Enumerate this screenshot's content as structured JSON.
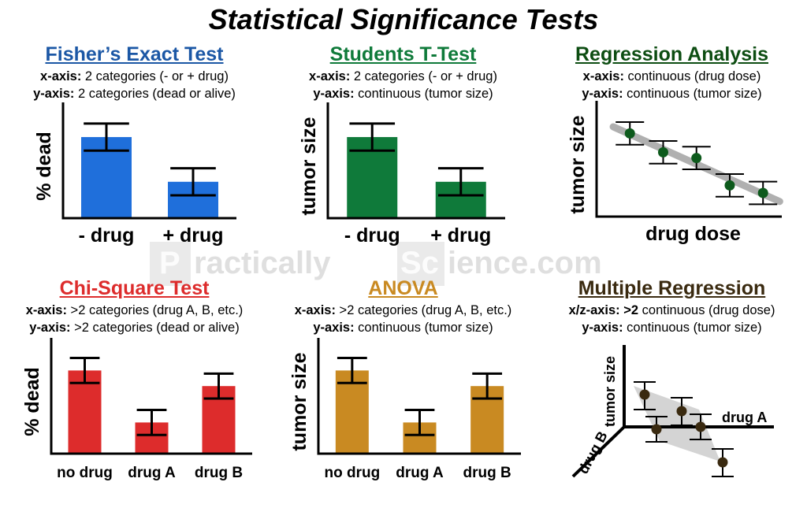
{
  "title": "Statistical Significance Tests",
  "watermark": {
    "text": "PracticallyScience.com",
    "parts": [
      "P",
      "ractically",
      "Sc",
      "ience.com"
    ]
  },
  "colors": {
    "blue": "#1f6fdb",
    "green": "#0f7a3a",
    "darkgreen": "#0d5a1c",
    "red": "#dd2c2c",
    "orange": "#c98a22",
    "dark": "#3a2a10",
    "fisher_title": "#1b57a5",
    "ttest_title": "#0f7a3a",
    "regression_title": "#0d4d12",
    "chi_title": "#dd2c2c",
    "anova_title": "#c98a22",
    "multireg_title": "#3a2a10"
  },
  "panels": {
    "fisher": {
      "title": "Fisher’s Exact Test",
      "x_label": "x-axis:",
      "x_desc": " 2 categories (- or + drug)",
      "y_label": "y-axis:",
      "y_desc": " 2 categories (dead or alive)",
      "chart_data": {
        "type": "bar",
        "categories": [
          "- drug",
          "+ drug"
        ],
        "values": [
          78,
          35
        ],
        "error": [
          13,
          13
        ],
        "ylabel": "% dead",
        "ylim": [
          0,
          100
        ],
        "grid": false
      }
    },
    "ttest": {
      "title": "Students T-Test",
      "x_label": "x-axis:",
      "x_desc": " 2 categories (- or + drug)",
      "y_label": "y-axis:",
      "y_desc": " continuous (tumor size)",
      "chart_data": {
        "type": "bar",
        "categories": [
          "- drug",
          "+ drug"
        ],
        "values": [
          78,
          35
        ],
        "error": [
          13,
          13
        ],
        "ylabel": "tumor size",
        "ylim": [
          0,
          100
        ],
        "grid": false
      }
    },
    "regression": {
      "title": "Regression Analysis",
      "x_label": "x-axis:",
      "x_desc": " continuous (drug dose)",
      "y_label": "y-axis:",
      "y_desc": " continuous (tumor size)",
      "chart_data": {
        "type": "scatter",
        "x": [
          1,
          2,
          3,
          4,
          5
        ],
        "y": [
          88,
          68,
          62,
          33,
          25
        ],
        "error": [
          12,
          12,
          12,
          12,
          12
        ],
        "trendline": {
          "x": [
            0.5,
            5.5
          ],
          "y": [
            95,
            16
          ]
        },
        "xlabel": "drug dose",
        "ylabel": "tumor size",
        "xlim": [
          0,
          5.8
        ],
        "ylim": [
          0,
          110
        ],
        "grid": false
      }
    },
    "chisquare": {
      "title": "Chi-Square Test",
      "x_label": "x-axis:",
      "x_desc": " >2 categories (drug A, B, etc.)",
      "y_label": "y-axis:",
      "y_desc": " >2 categories (dead or alive)",
      "chart_data": {
        "type": "bar",
        "categories": [
          "no drug",
          "drug A",
          "drug B"
        ],
        "values": [
          80,
          30,
          65
        ],
        "error": [
          12,
          12,
          12
        ],
        "ylabel": "% dead",
        "ylim": [
          0,
          100
        ],
        "grid": false
      }
    },
    "anova": {
      "title": "ANOVA",
      "x_label": "x-axis:",
      "x_desc": " >2 categories (drug A, B, etc.)",
      "y_label": "y-axis:",
      "y_desc": " continuous (tumor size)",
      "chart_data": {
        "type": "bar",
        "categories": [
          "no drug",
          "drug A",
          "drug B"
        ],
        "values": [
          80,
          30,
          65
        ],
        "error": [
          12,
          12,
          12
        ],
        "ylabel": "tumor size",
        "ylim": [
          0,
          100
        ],
        "grid": false
      }
    },
    "multireg": {
      "title": "Multiple Regression",
      "x_label": "x/z-axis: >2",
      "x_desc": " continuous (drug dose)",
      "y_label": "y-axis:",
      "y_desc": " continuous (tumor size)",
      "chart_data": {
        "type": "scatter",
        "axes3d": {
          "x": "drug A",
          "y": "tumor size",
          "z": "drug B"
        },
        "points": 6,
        "grid": false
      }
    }
  }
}
